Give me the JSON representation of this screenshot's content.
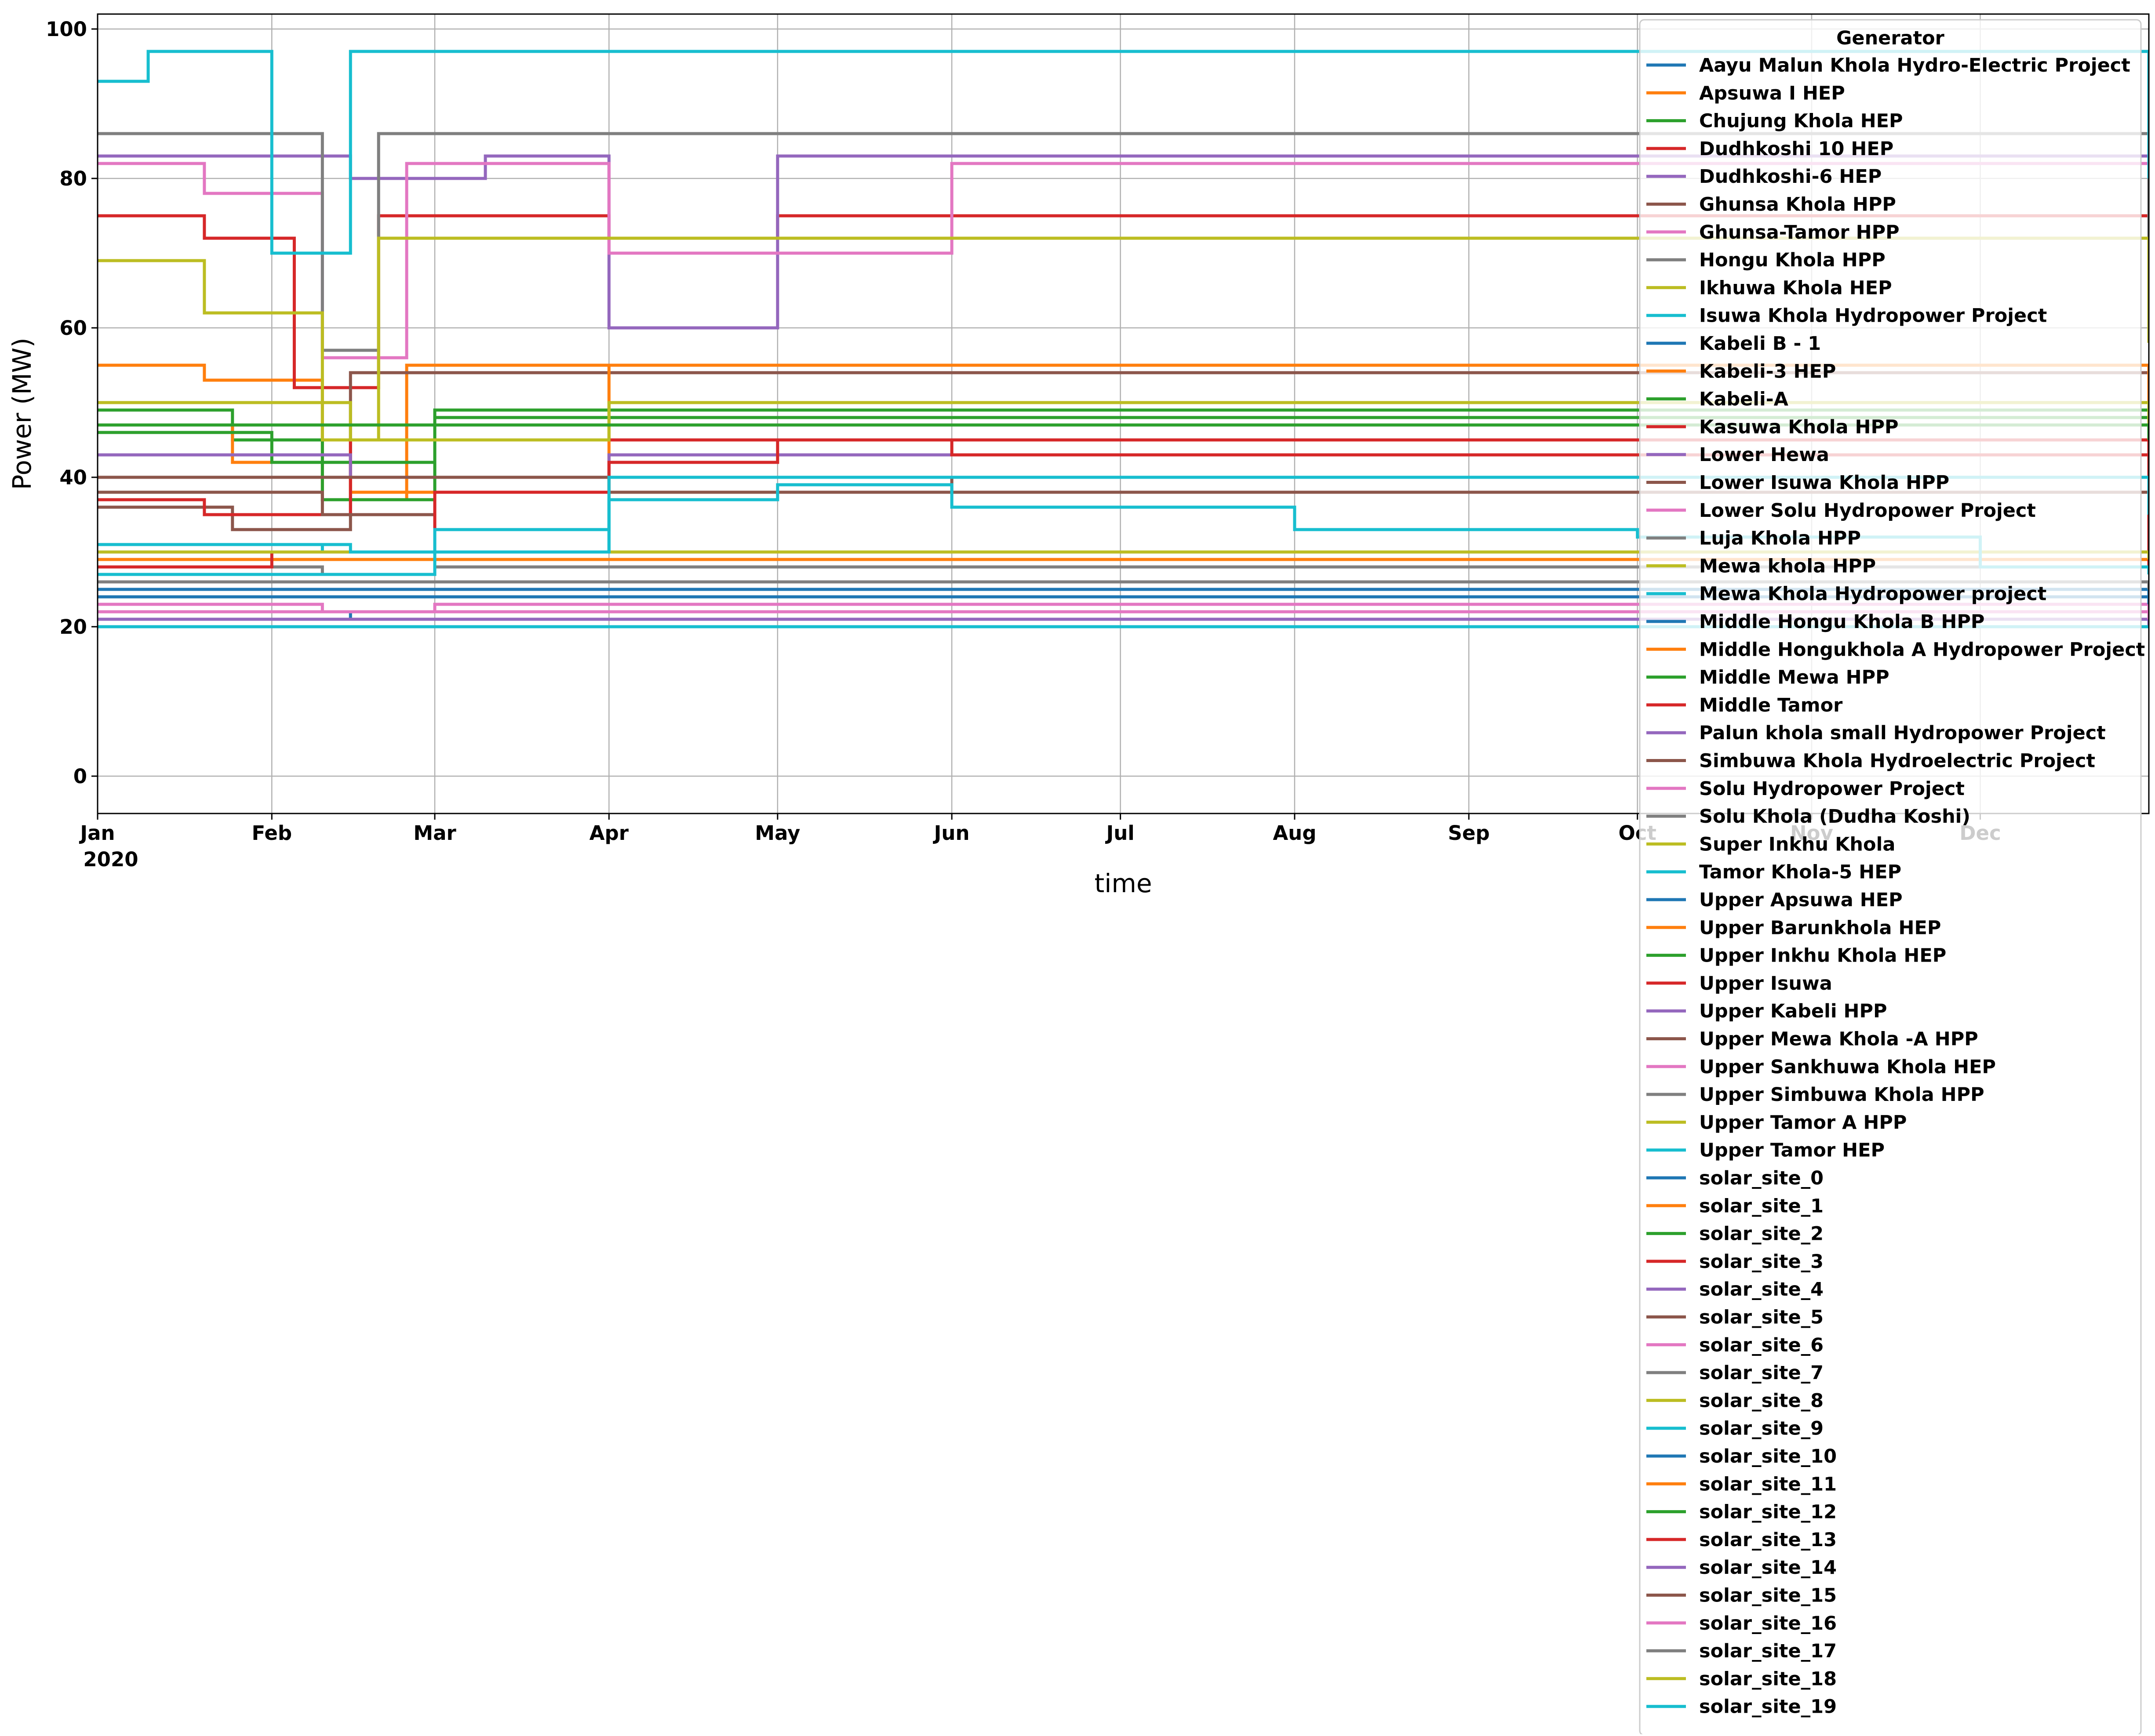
{
  "chart_data": {
    "type": "line",
    "title": "",
    "xlabel": "time",
    "ylabel": "Power (MW)",
    "xlim": [
      "2020-01-01",
      "2020-12-31"
    ],
    "ylim": [
      -5,
      102
    ],
    "grid": true,
    "legend_placement": "top-right",
    "x_ticks": [
      {
        "date": "2020-01-01",
        "label": "Jan",
        "sublabel": "2020"
      },
      {
        "date": "2020-02-01",
        "label": "Feb"
      },
      {
        "date": "2020-03-01",
        "label": "Mar"
      },
      {
        "date": "2020-04-01",
        "label": "Apr"
      },
      {
        "date": "2020-05-01",
        "label": "May"
      },
      {
        "date": "2020-06-01",
        "label": "Jun"
      },
      {
        "date": "2020-07-01",
        "label": "Jul"
      },
      {
        "date": "2020-08-01",
        "label": "Aug"
      },
      {
        "date": "2020-09-01",
        "label": "Sep"
      },
      {
        "date": "2020-10-01",
        "label": "Oct"
      },
      {
        "date": "2020-11-01",
        "label": "Nov"
      },
      {
        "date": "2020-12-01",
        "label": "Dec"
      }
    ],
    "y_ticks": [
      0,
      20,
      40,
      60,
      80,
      100
    ],
    "legend_title": "Generator",
    "series": [
      {
        "name": "Aayu Malun Khola Hydro-Electric Project",
        "color": "#1f77b4",
        "x": [
          "2020-01-01",
          "2020-02-15",
          "2020-06-01",
          "2020-12-31"
        ],
        "y": [
          21,
          22,
          22,
          21
        ]
      },
      {
        "name": "Apsuwa I HEP",
        "color": "#ff7f0e",
        "x": [
          "2020-01-01",
          "2020-01-20",
          "2020-02-10",
          "2020-02-25",
          "2020-03-15",
          "2020-04-15",
          "2020-05-20",
          "2020-06-05",
          "2020-12-01",
          "2020-12-31"
        ],
        "y": [
          55,
          53,
          37,
          55,
          55,
          55,
          55,
          55,
          55,
          52
        ]
      },
      {
        "name": "Chujung Khola HEP",
        "color": "#2ca02c",
        "x": [
          "2020-01-01",
          "2020-01-25",
          "2020-02-10",
          "2020-03-01",
          "2020-06-01",
          "2020-12-01",
          "2020-12-31"
        ],
        "y": [
          49,
          45,
          37,
          49,
          49,
          49,
          40
        ]
      },
      {
        "name": "Dudhkoshi 10 HEP",
        "color": "#d62728",
        "x": [
          "2020-01-01",
          "2020-01-20",
          "2020-02-05",
          "2020-02-20",
          "2020-04-01",
          "2020-05-01",
          "2020-06-01",
          "2020-06-25",
          "2020-07-01",
          "2020-12-01",
          "2020-12-31"
        ],
        "y": [
          75,
          72,
          52,
          75,
          72,
          75,
          75,
          75,
          75,
          75,
          60
        ]
      },
      {
        "name": "Dudhkoshi-6 HEP",
        "color": "#9467bd",
        "x": [
          "2020-01-01",
          "2020-02-15",
          "2020-03-10",
          "2020-04-01",
          "2020-05-01",
          "2020-06-05",
          "2020-12-01",
          "2020-12-31"
        ],
        "y": [
          83,
          80,
          83,
          60,
          83,
          83,
          83,
          72
        ]
      },
      {
        "name": "Ghunsa Khola HPP",
        "color": "#8c564b",
        "x": [
          "2020-01-01",
          "2020-01-25",
          "2020-02-15",
          "2020-04-01",
          "2020-06-01",
          "2020-12-01",
          "2020-12-31"
        ],
        "y": [
          36,
          33,
          54,
          54,
          54,
          54,
          45
        ]
      },
      {
        "name": "Ghunsa-Tamor HPP",
        "color": "#e377c2",
        "x": [
          "2020-01-01",
          "2020-01-20",
          "2020-02-10",
          "2020-02-25",
          "2020-04-01",
          "2020-06-01",
          "2020-12-01",
          "2020-12-31"
        ],
        "y": [
          82,
          78,
          56,
          82,
          70,
          82,
          82,
          60
        ]
      },
      {
        "name": "Hongu Khola HPP",
        "color": "#7f7f7f",
        "x": [
          "2020-01-01",
          "2020-01-20",
          "2020-02-10",
          "2020-02-20",
          "2020-04-01",
          "2020-05-01",
          "2020-05-25",
          "2020-06-10",
          "2020-12-01",
          "2020-12-31"
        ],
        "y": [
          86,
          86,
          57,
          86,
          86,
          86,
          86,
          86,
          86,
          70
        ]
      },
      {
        "name": "Ikhuwa Khola HEP",
        "color": "#bcbd22",
        "x": [
          "2020-01-01",
          "2020-01-20",
          "2020-02-10",
          "2020-02-20",
          "2020-04-15",
          "2020-05-20",
          "2020-06-01",
          "2020-12-01",
          "2020-12-31"
        ],
        "y": [
          69,
          62,
          45,
          72,
          72,
          72,
          72,
          72,
          58
        ]
      },
      {
        "name": "Isuwa Khola Hydropower Project",
        "color": "#17becf",
        "x": [
          "2020-01-01",
          "2020-02-10",
          "2020-02-28",
          "2020-04-01",
          "2020-05-01",
          "2020-06-01",
          "2020-12-01",
          "2020-12-31"
        ],
        "y": [
          31,
          30,
          30,
          40,
          40,
          40,
          40,
          32
        ]
      },
      {
        "name": "Kabeli B - 1",
        "color": "#1f77b4",
        "x": [
          "2020-01-01",
          "2020-03-01",
          "2020-06-01",
          "2020-12-31"
        ],
        "y": [
          25,
          25,
          25,
          24
        ]
      },
      {
        "name": "Kabeli-3 HEP",
        "color": "#ff7f0e",
        "x": [
          "2020-01-01",
          "2020-01-25",
          "2020-02-15",
          "2020-04-01",
          "2020-06-01",
          "2020-12-01",
          "2020-12-31"
        ],
        "y": [
          47,
          42,
          38,
          55,
          55,
          55,
          50
        ]
      },
      {
        "name": "Kabeli-A",
        "color": "#2ca02c",
        "x": [
          "2020-01-01",
          "2020-02-01",
          "2020-03-01",
          "2020-06-01",
          "2020-12-01",
          "2020-12-31"
        ],
        "y": [
          46,
          42,
          48,
          48,
          48,
          40
        ]
      },
      {
        "name": "Kasuwa Khola HPP",
        "color": "#d62728",
        "x": [
          "2020-01-01",
          "2020-01-20",
          "2020-02-15",
          "2020-04-01",
          "2020-06-01",
          "2020-12-01",
          "2020-12-31"
        ],
        "y": [
          37,
          35,
          45,
          45,
          45,
          45,
          40
        ]
      },
      {
        "name": "Lower Hewa",
        "color": "#9467bd",
        "x": [
          "2020-01-01",
          "2020-02-15",
          "2020-04-01",
          "2020-06-01",
          "2020-12-31"
        ],
        "y": [
          43,
          40,
          43,
          43,
          40
        ]
      },
      {
        "name": "Lower Isuwa Khola HPP",
        "color": "#8c564b",
        "x": [
          "2020-01-01",
          "2020-02-10",
          "2020-03-01",
          "2020-06-01",
          "2020-12-31"
        ],
        "y": [
          38,
          35,
          38,
          38,
          35
        ]
      },
      {
        "name": "Lower Solu Hydropower Project",
        "color": "#e377c2",
        "x": [
          "2020-01-01",
          "2020-02-10",
          "2020-03-01",
          "2020-06-01",
          "2020-12-31"
        ],
        "y": [
          23,
          22,
          23,
          23,
          22
        ]
      },
      {
        "name": "Luja Khola HPP",
        "color": "#7f7f7f",
        "x": [
          "2020-01-01",
          "2020-02-10",
          "2020-03-01",
          "2020-06-01",
          "2020-12-31"
        ],
        "y": [
          28,
          27,
          28,
          28,
          27
        ]
      },
      {
        "name": "Mewa khola HPP",
        "color": "#bcbd22",
        "x": [
          "2020-01-01",
          "2020-02-15",
          "2020-04-01",
          "2020-06-01",
          "2020-12-31"
        ],
        "y": [
          50,
          45,
          50,
          50,
          46
        ]
      },
      {
        "name": "Mewa Khola Hydropower project",
        "color": "#17becf",
        "x": [
          "2020-01-01",
          "2020-01-10",
          "2020-02-01",
          "2020-02-15",
          "2020-03-10",
          "2020-04-15",
          "2020-05-01",
          "2020-05-28",
          "2020-06-01",
          "2020-12-01",
          "2020-12-31"
        ],
        "y": [
          93,
          97,
          70,
          97,
          97,
          97,
          97,
          97,
          97,
          97,
          80
        ]
      },
      {
        "name": "Middle Hongu Khola B HPP",
        "color": "#1f77b4",
        "x": [
          "2020-01-01",
          "2020-06-01",
          "2020-12-31"
        ],
        "y": [
          24,
          24,
          23
        ]
      },
      {
        "name": "Middle Hongukhola A Hydropower Project",
        "color": "#ff7f0e",
        "x": [
          "2020-01-01",
          "2020-06-01",
          "2020-12-31"
        ],
        "y": [
          29,
          29,
          28
        ]
      },
      {
        "name": "Middle Mewa HPP",
        "color": "#2ca02c",
        "x": [
          "2020-01-01",
          "2020-06-01",
          "2020-12-31"
        ],
        "y": [
          47,
          47,
          45
        ]
      },
      {
        "name": "Middle Tamor",
        "color": "#d62728",
        "x": [
          "2020-01-01",
          "2020-02-01",
          "2020-03-01",
          "2020-04-01",
          "2020-05-01",
          "2020-06-01",
          "2020-12-31"
        ],
        "y": [
          28,
          30,
          38,
          42,
          45,
          43,
          28
        ]
      },
      {
        "name": "Palun khola small Hydropower Project",
        "color": "#9467bd",
        "x": [
          "2020-01-01",
          "2020-06-01",
          "2020-12-31"
        ],
        "y": [
          21,
          21,
          20
        ]
      },
      {
        "name": "Simbuwa Khola Hydroelectric Project",
        "color": "#8c564b",
        "x": [
          "2020-01-01",
          "2020-06-01",
          "2020-12-31"
        ],
        "y": [
          40,
          38,
          36
        ]
      },
      {
        "name": "Solu Hydropower Project",
        "color": "#e377c2",
        "x": [
          "2020-01-01",
          "2020-06-01",
          "2020-12-31"
        ],
        "y": [
          22,
          22,
          21
        ]
      },
      {
        "name": "Solu Khola (Dudha Koshi)",
        "color": "#7f7f7f",
        "x": [
          "2020-01-01",
          "2020-06-01",
          "2020-12-31"
        ],
        "y": [
          26,
          26,
          25
        ]
      },
      {
        "name": "Super Inkhu Khola",
        "color": "#bcbd22",
        "x": [
          "2020-01-01",
          "2020-06-01",
          "2020-12-31"
        ],
        "y": [
          30,
          30,
          29
        ]
      },
      {
        "name": "Tamor Khola-5 HEP",
        "color": "#17becf",
        "x": [
          "2020-01-01",
          "2020-02-15",
          "2020-04-01",
          "2020-06-01",
          "2020-12-31"
        ],
        "y": [
          31,
          30,
          40,
          40,
          35
        ]
      },
      {
        "name": "Upper Apsuwa HEP",
        "color": "#1f77b4",
        "x": [
          "2020-01-01",
          "2020-12-31"
        ],
        "y": [
          20,
          20
        ]
      },
      {
        "name": "Upper Barunkhola HEP",
        "color": "#ff7f0e",
        "x": [
          "2020-01-01",
          "2020-12-31"
        ],
        "y": [
          20,
          20
        ]
      },
      {
        "name": "Upper Inkhu Khola HEP",
        "color": "#2ca02c",
        "x": [
          "2020-01-01",
          "2020-12-31"
        ],
        "y": [
          20,
          20
        ]
      },
      {
        "name": "Upper Isuwa",
        "color": "#d62728",
        "x": [
          "2020-01-01",
          "2020-12-31"
        ],
        "y": [
          20,
          20
        ]
      },
      {
        "name": "Upper Kabeli HPP",
        "color": "#9467bd",
        "x": [
          "2020-01-01",
          "2020-12-31"
        ],
        "y": [
          20,
          20
        ]
      },
      {
        "name": "Upper Mewa Khola -A HPP",
        "color": "#8c564b",
        "x": [
          "2020-01-01",
          "2020-12-31"
        ],
        "y": [
          20,
          20
        ]
      },
      {
        "name": "Upper Sankhuwa Khola HEP",
        "color": "#e377c2",
        "x": [
          "2020-01-01",
          "2020-12-31"
        ],
        "y": [
          20,
          20
        ]
      },
      {
        "name": "Upper Simbuwa Khola HPP",
        "color": "#7f7f7f",
        "x": [
          "2020-01-01",
          "2020-12-31"
        ],
        "y": [
          20,
          20
        ]
      },
      {
        "name": "Upper Tamor A HPP",
        "color": "#bcbd22",
        "x": [
          "2020-01-01",
          "2020-12-31"
        ],
        "y": [
          20,
          20
        ]
      },
      {
        "name": "Upper Tamor HEP",
        "color": "#17becf",
        "x": [
          "2020-01-01",
          "2020-12-31"
        ],
        "y": [
          20,
          20
        ]
      },
      {
        "name": "solar_site_0",
        "color": "#1f77b4",
        "x": [],
        "y": []
      },
      {
        "name": "solar_site_1",
        "color": "#ff7f0e",
        "x": [],
        "y": []
      },
      {
        "name": "solar_site_2",
        "color": "#2ca02c",
        "x": [],
        "y": []
      },
      {
        "name": "solar_site_3",
        "color": "#d62728",
        "x": [],
        "y": []
      },
      {
        "name": "solar_site_4",
        "color": "#9467bd",
        "x": [],
        "y": []
      },
      {
        "name": "solar_site_5",
        "color": "#8c564b",
        "x": [],
        "y": []
      },
      {
        "name": "solar_site_6",
        "color": "#e377c2",
        "x": [],
        "y": []
      },
      {
        "name": "solar_site_7",
        "color": "#7f7f7f",
        "x": [],
        "y": []
      },
      {
        "name": "solar_site_8",
        "color": "#bcbd22",
        "x": [],
        "y": []
      },
      {
        "name": "solar_site_9",
        "color": "#17becf",
        "x": [],
        "y": []
      },
      {
        "name": "solar_site_10",
        "color": "#1f77b4",
        "x": [],
        "y": []
      },
      {
        "name": "solar_site_11",
        "color": "#ff7f0e",
        "x": [],
        "y": []
      },
      {
        "name": "solar_site_12",
        "color": "#2ca02c",
        "x": [],
        "y": []
      },
      {
        "name": "solar_site_13",
        "color": "#d62728",
        "x": [],
        "y": []
      },
      {
        "name": "solar_site_14",
        "color": "#9467bd",
        "x": [],
        "y": []
      },
      {
        "name": "solar_site_15",
        "color": "#8c564b",
        "x": [],
        "y": []
      },
      {
        "name": "solar_site_16",
        "color": "#e377c2",
        "x": [],
        "y": []
      },
      {
        "name": "solar_site_17",
        "color": "#7f7f7f",
        "x": [],
        "y": []
      },
      {
        "name": "solar_site_18",
        "color": "#bcbd22",
        "x": [],
        "y": []
      },
      {
        "name": "solar_site_19",
        "color": "#17becf",
        "x": [
          "2020-01-01",
          "2020-03-01",
          "2020-04-01",
          "2020-05-01",
          "2020-06-01",
          "2020-08-01",
          "2020-10-01",
          "2020-12-01",
          "2020-12-31"
        ],
        "y": [
          27,
          33,
          37,
          39,
          36,
          33,
          32,
          28,
          27
        ]
      }
    ]
  }
}
